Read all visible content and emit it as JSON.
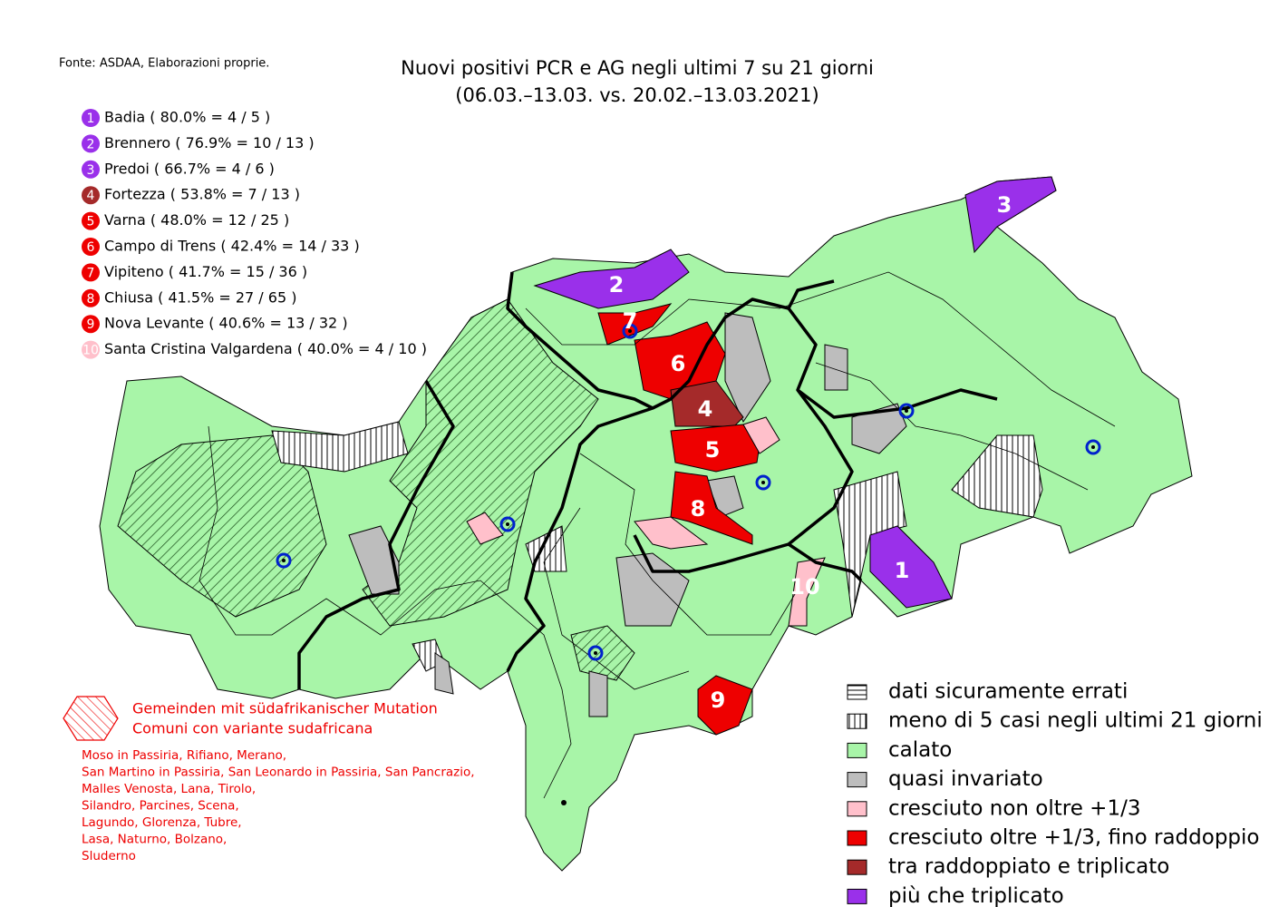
{
  "source": "Fonte: ASDAA, Elaborazioni proprie.",
  "title": [
    "Nuovi positivi PCR e AG negli ultimi 7 su 21 giorni",
    "(06.03.–13.03. vs. 20.02.–13.03.2021)"
  ],
  "ranking": [
    {
      "rank": "1",
      "text": "Badia ( 80.0% = 4 / 5 )",
      "color": "#9a30ea"
    },
    {
      "rank": "2",
      "text": "Brennero ( 76.9% = 10 / 13 )",
      "color": "#9a30ea"
    },
    {
      "rank": "3",
      "text": "Predoi ( 66.7% = 4 / 6 )",
      "color": "#9a30ea"
    },
    {
      "rank": "4",
      "text": "Fortezza ( 53.8% = 7 / 13 )",
      "color": "#a52a2a"
    },
    {
      "rank": "5",
      "text": "Varna ( 48.0% = 12 / 25 )",
      "color": "#ee0000"
    },
    {
      "rank": "6",
      "text": "Campo di Trens ( 42.4% = 14 / 33 )",
      "color": "#ee0000"
    },
    {
      "rank": "7",
      "text": "Vipiteno ( 41.7% = 15 / 36 )",
      "color": "#ee0000"
    },
    {
      "rank": "8",
      "text": "Chiusa ( 41.5% = 27 / 65 )",
      "color": "#ee0000"
    },
    {
      "rank": "9",
      "text": "Nova Levante ( 40.6% = 13 / 32 )",
      "color": "#ee0000"
    },
    {
      "rank": "10",
      "text": "Santa Cristina Valgardena ( 40.0% = 4 / 10 )",
      "color": "#ffc0cb"
    }
  ],
  "map_labels": [
    "3",
    "2",
    "7",
    "6",
    "4",
    "5",
    "8",
    "1",
    "10",
    "9"
  ],
  "mutation_legend": {
    "title_de": "Gemeinden mit südafrikanischer Mutation",
    "title_it": "Comuni con variante sudafricana",
    "comuni": [
      "Moso in Passiria,  Rifiano,  Merano,",
      "San Martino in Passiria,  San Leonardo in Passiria,  San Pancrazio,",
      "Malles Venosta,  Lana,  Tirolo,",
      "Silandro,  Parcines,  Scena,",
      "Lagundo,  Glorenza,  Tubre,",
      "Lasa,  Naturno,  Bolzano,",
      "Sluderno"
    ]
  },
  "legend": [
    {
      "label": "dati sicuramente errati",
      "pattern": "horizontal"
    },
    {
      "label": "meno di 5 casi negli ultimi 21 giorni",
      "pattern": "vertical"
    },
    {
      "label": "calato",
      "color": "#a8f5a8"
    },
    {
      "label": "quasi invariato",
      "color": "#bdbdbd"
    },
    {
      "label": "cresciuto non oltre +1/3",
      "color": "#ffc0cb"
    },
    {
      "label": "cresciuto oltre +1/3, fino raddoppio",
      "color": "#ee0000"
    },
    {
      "label": "tra raddoppiato e triplicato",
      "color": "#a52a2a"
    },
    {
      "label": "più che triplicato",
      "color": "#9a30ea"
    }
  ]
}
